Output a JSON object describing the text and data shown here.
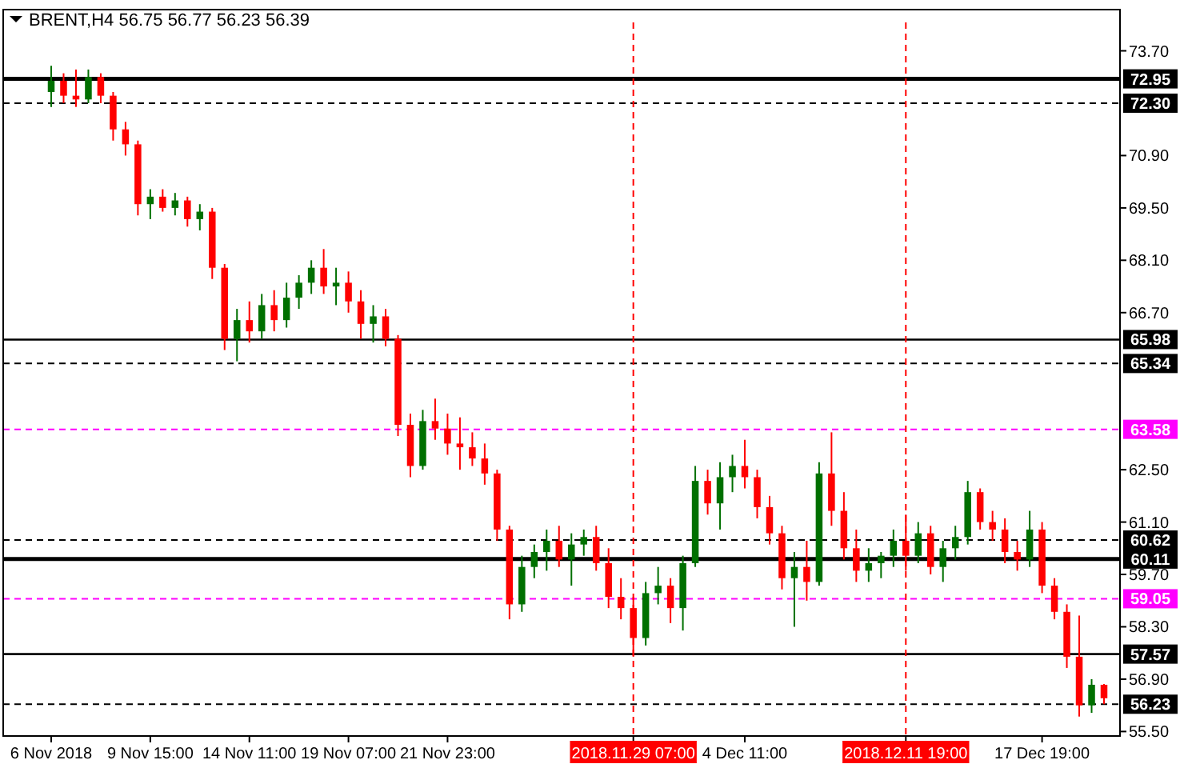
{
  "chart_data": {
    "type": "candlestick",
    "title": "BRENT,H4 56.75 56.77 56.23 56.39",
    "categories": [
      "6 Nov 2018",
      null,
      null,
      null,
      null,
      null,
      null,
      null,
      "9 Nov 15:00",
      null,
      null,
      null,
      null,
      null,
      null,
      null,
      "14 Nov 11:00",
      null,
      null,
      null,
      null,
      null,
      null,
      null,
      "19 Nov 07:00",
      null,
      null,
      null,
      null,
      null,
      null,
      null,
      "21 Nov 23:00",
      null,
      null,
      null,
      null,
      null,
      null,
      null,
      null,
      null,
      null,
      null,
      null,
      null,
      null,
      "2018.11.29 07:00",
      null,
      null,
      null,
      null,
      null,
      null,
      null,
      null,
      "4 Dec 11:00",
      null,
      null,
      null,
      null,
      null,
      null,
      null,
      null,
      null,
      null,
      null,
      null,
      "2018.12.11 19:00",
      null,
      null,
      null,
      null,
      null,
      null,
      null,
      null,
      null,
      null,
      "17 Dec 19:00",
      null,
      null,
      null,
      null,
      null
    ],
    "ohlc": [
      [
        72.6,
        73.3,
        72.2,
        72.9
      ],
      [
        72.9,
        73.1,
        72.3,
        72.5
      ],
      [
        72.5,
        73.2,
        72.2,
        72.4
      ],
      [
        72.4,
        73.2,
        72.3,
        73.0
      ],
      [
        73.0,
        73.1,
        72.3,
        72.5
      ],
      [
        72.5,
        72.6,
        71.3,
        71.6
      ],
      [
        71.6,
        71.8,
        70.9,
        71.2
      ],
      [
        71.2,
        71.3,
        69.3,
        69.6
      ],
      [
        69.6,
        70.0,
        69.2,
        69.8
      ],
      [
        69.8,
        70.0,
        69.4,
        69.5
      ],
      [
        69.5,
        69.9,
        69.3,
        69.7
      ],
      [
        69.7,
        69.8,
        69.0,
        69.2
      ],
      [
        69.2,
        69.6,
        68.9,
        69.4
      ],
      [
        69.4,
        69.5,
        67.6,
        67.9
      ],
      [
        67.9,
        68.0,
        65.7,
        66.0
      ],
      [
        66.0,
        66.8,
        65.4,
        66.5
      ],
      [
        66.5,
        67.0,
        65.9,
        66.2
      ],
      [
        66.2,
        67.2,
        66.0,
        66.9
      ],
      [
        66.9,
        67.3,
        66.2,
        66.5
      ],
      [
        66.5,
        67.5,
        66.3,
        67.1
      ],
      [
        67.1,
        67.7,
        66.8,
        67.5
      ],
      [
        67.5,
        68.1,
        67.2,
        67.9
      ],
      [
        67.9,
        68.4,
        67.2,
        67.4
      ],
      [
        67.4,
        67.9,
        66.9,
        67.5
      ],
      [
        67.5,
        67.8,
        66.7,
        67.0
      ],
      [
        67.0,
        67.3,
        66.0,
        66.4
      ],
      [
        66.4,
        66.9,
        65.9,
        66.6
      ],
      [
        66.6,
        66.8,
        65.8,
        66.0
      ],
      [
        66.0,
        66.1,
        63.4,
        63.7
      ],
      [
        63.7,
        64.0,
        62.3,
        62.6
      ],
      [
        62.6,
        64.1,
        62.5,
        63.8
      ],
      [
        63.8,
        64.4,
        63.3,
        63.6
      ],
      [
        63.6,
        64.0,
        62.9,
        63.2
      ],
      [
        63.2,
        63.9,
        62.5,
        63.1
      ],
      [
        63.1,
        63.5,
        62.6,
        62.8
      ],
      [
        62.8,
        63.2,
        62.1,
        62.4
      ],
      [
        62.4,
        62.5,
        60.6,
        60.9
      ],
      [
        60.9,
        61.0,
        58.5,
        58.9
      ],
      [
        58.9,
        60.2,
        58.7,
        59.9
      ],
      [
        59.9,
        60.5,
        59.6,
        60.3
      ],
      [
        60.3,
        60.9,
        59.8,
        60.6
      ],
      [
        60.6,
        61.0,
        59.9,
        60.1
      ],
      [
        60.1,
        60.8,
        59.4,
        60.5
      ],
      [
        60.5,
        60.9,
        60.2,
        60.7
      ],
      [
        60.7,
        61.0,
        59.8,
        60.0
      ],
      [
        60.0,
        60.4,
        58.8,
        59.1
      ],
      [
        59.1,
        59.6,
        58.5,
        58.8
      ],
      [
        58.8,
        59.1,
        57.5,
        58.0
      ],
      [
        58.0,
        59.5,
        57.8,
        59.2
      ],
      [
        59.2,
        59.9,
        58.9,
        59.4
      ],
      [
        59.4,
        59.6,
        58.4,
        58.8
      ],
      [
        58.8,
        60.2,
        58.2,
        60.0
      ],
      [
        60.0,
        62.6,
        59.9,
        62.2
      ],
      [
        62.2,
        62.5,
        61.3,
        61.6
      ],
      [
        61.6,
        62.7,
        60.9,
        62.3
      ],
      [
        62.3,
        62.9,
        61.9,
        62.6
      ],
      [
        62.6,
        63.3,
        62.0,
        62.3
      ],
      [
        62.3,
        62.5,
        61.2,
        61.5
      ],
      [
        61.5,
        61.8,
        60.5,
        60.8
      ],
      [
        60.8,
        61.0,
        59.3,
        59.6
      ],
      [
        59.6,
        60.3,
        58.3,
        59.9
      ],
      [
        59.9,
        60.6,
        59.0,
        59.5
      ],
      [
        59.5,
        62.7,
        59.4,
        62.4
      ],
      [
        62.4,
        63.5,
        61.0,
        61.4
      ],
      [
        61.4,
        61.9,
        60.1,
        60.4
      ],
      [
        60.4,
        60.9,
        59.5,
        59.8
      ],
      [
        59.8,
        60.4,
        59.5,
        60.0
      ],
      [
        60.0,
        60.3,
        59.6,
        60.2
      ],
      [
        60.2,
        60.9,
        59.9,
        60.6
      ],
      [
        60.6,
        61.3,
        59.8,
        60.2
      ],
      [
        60.2,
        61.1,
        60.0,
        60.8
      ],
      [
        60.8,
        61.0,
        59.7,
        59.9
      ],
      [
        59.9,
        60.6,
        59.5,
        60.4
      ],
      [
        60.4,
        61.0,
        60.1,
        60.7
      ],
      [
        60.7,
        62.2,
        60.5,
        61.9
      ],
      [
        61.9,
        62.0,
        60.9,
        61.1
      ],
      [
        61.1,
        61.4,
        60.6,
        60.9
      ],
      [
        60.9,
        61.2,
        60.0,
        60.3
      ],
      [
        60.3,
        60.6,
        59.8,
        60.1
      ],
      [
        60.1,
        61.4,
        59.9,
        60.9
      ],
      [
        60.9,
        61.1,
        59.2,
        59.4
      ],
      [
        59.4,
        59.6,
        58.5,
        58.7
      ],
      [
        58.7,
        58.9,
        57.2,
        57.5
      ],
      [
        57.5,
        58.6,
        55.9,
        56.2
      ],
      [
        56.2,
        56.9,
        56.0,
        56.75
      ],
      [
        56.75,
        56.77,
        56.23,
        56.39
      ]
    ],
    "ylim": [
      55.38,
      74.46
    ],
    "yticks": [
      {
        "value": 73.7,
        "label": "73.70"
      },
      {
        "value": 70.9,
        "label": "70.90"
      },
      {
        "value": 69.5,
        "label": "69.50"
      },
      {
        "value": 68.1,
        "label": "68.10"
      },
      {
        "value": 66.7,
        "label": "66.70"
      },
      {
        "value": 62.5,
        "label": "62.50"
      },
      {
        "value": 61.1,
        "label": "61.10"
      },
      {
        "value": 59.7,
        "label": "59.70"
      },
      {
        "value": 58.3,
        "label": "58.30"
      },
      {
        "value": 56.9,
        "label": "56.90"
      },
      {
        "value": 55.5,
        "label": "55.50"
      }
    ],
    "ref_lines": [
      {
        "axis": "y",
        "value": 72.95,
        "label": "72.95",
        "color": "#000000",
        "line_style": "solid"
      },
      {
        "axis": "y",
        "value": 72.3,
        "label": "72.30",
        "color": "#000000",
        "line_style": "dashed"
      },
      {
        "axis": "y",
        "value": 65.98,
        "label": "65.98",
        "color": "#000000",
        "line_style": "solid"
      },
      {
        "axis": "y",
        "value": 65.34,
        "label": "65.34",
        "color": "#000000",
        "line_style": "dashed"
      },
      {
        "axis": "y",
        "value": 63.58,
        "label": "63.58",
        "color": "#ff00ff",
        "line_style": "dashed"
      },
      {
        "axis": "y",
        "value": 60.62,
        "label": "60.62",
        "color": "#000000",
        "line_style": "dashed"
      },
      {
        "axis": "y",
        "value": 60.11,
        "label": "60.11",
        "color": "#000000",
        "line_style": "solid"
      },
      {
        "axis": "y",
        "value": 59.05,
        "label": "59.05",
        "color": "#ff00ff",
        "line_style": "dashed"
      },
      {
        "axis": "y",
        "value": 57.57,
        "label": "57.57",
        "color": "#000000",
        "line_style": "solid"
      },
      {
        "axis": "y",
        "value": 56.23,
        "label": "56.23",
        "color": "#000000",
        "line_style": "dashed"
      },
      {
        "axis": "x",
        "value": "2018.11.29 07:00",
        "color": "#ff0000",
        "line_style": "dashed"
      },
      {
        "axis": "x",
        "value": "2018.12.11 19:00",
        "color": "#ff0000",
        "line_style": "dashed"
      }
    ],
    "grid": false
  }
}
